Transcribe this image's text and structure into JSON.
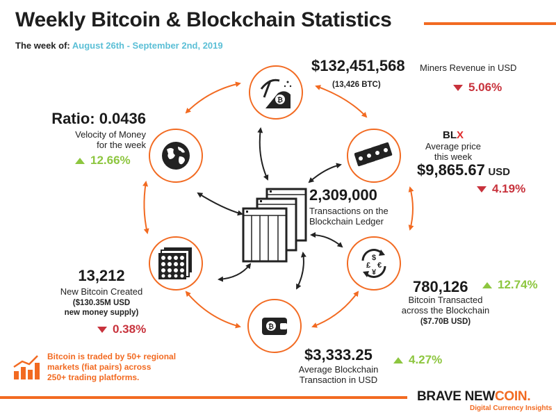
{
  "title": "Weekly Bitcoin & Blockchain Statistics",
  "week": {
    "label": "The week of:",
    "dates": "August 26th - September 2nd, 2019"
  },
  "miners": {
    "value": "$132,451,568",
    "label": "Miners Revenue in USD",
    "sub": "(13,426 BTC)",
    "change": "5.06%",
    "direction": "down"
  },
  "price": {
    "brand_b": "BL",
    "brand_x": "X",
    "label1": "Average price",
    "label2": "this week",
    "value": "$9,865.67",
    "unit": "USD",
    "change": "4.19%",
    "direction": "down"
  },
  "velocity": {
    "value": "Ratio: 0.0436",
    "label1": "Velocity of Money",
    "label2": "for the week",
    "change": "12.66%",
    "direction": "up"
  },
  "transactions": {
    "value": "2,309,000",
    "label1": "Transactions on the",
    "label2": "Blockchain Ledger"
  },
  "transacted": {
    "value": "780,126",
    "change": "12.74%",
    "direction": "up",
    "label1": "Bitcoin Transacted",
    "label2": "across the Blockchain",
    "sub": "($7.70B USD)"
  },
  "new_btc": {
    "value": "13,212",
    "label": "New Bitcoin Created",
    "sub1": "($130.35M USD",
    "sub2": "new money supply)",
    "change": "0.38%",
    "direction": "down"
  },
  "avg_tx": {
    "value": "$3,333.25",
    "change": "4.27%",
    "direction": "up",
    "label1": "Average Blockchain",
    "label2": "Transaction in USD"
  },
  "note": {
    "line1": "Bitcoin is traded by 50+ regional",
    "line2": "markets (fiat pairs) across",
    "line3": "250+ trading platforms."
  },
  "brand": {
    "part1": "BRAVE NEW",
    "part2": "COIN.",
    "tagline": "Digital Currency Insights"
  },
  "colors": {
    "accent": "#f26a21",
    "up": "#8dc63f",
    "down": "#c8323c",
    "date": "#5bbfd6"
  },
  "icons": [
    "pickaxe-bitcoin-icon",
    "money-stack-icon",
    "globe-icon",
    "ledger-pages-icon",
    "currency-exchange-icon",
    "bitcoin-grid-icon",
    "wallet-icon",
    "trend-chart-icon"
  ]
}
